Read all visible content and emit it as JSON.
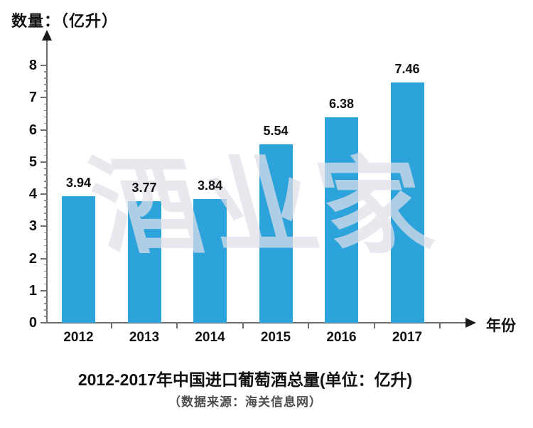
{
  "y_axis_label": "数量：（亿升）",
  "x_axis_label": "年份",
  "watermark": "酒业家",
  "title": "2012-2017年中国进口葡萄酒总量(单位：亿升)",
  "source": "（数据来源：海关信息网）",
  "colors": {
    "bar": "#2CA3DB",
    "axis": "#6e6e6e",
    "watermark": "rgba(223,223,232,0.72)",
    "title": "#111111",
    "source": "#4d4d4d"
  },
  "chart_data": {
    "type": "bar",
    "categories": [
      "2012",
      "2013",
      "2014",
      "2015",
      "2016",
      "2017"
    ],
    "values": [
      3.94,
      3.77,
      3.84,
      5.54,
      6.38,
      7.46
    ],
    "value_labels": [
      "3.94",
      "3.77",
      "3.84",
      "5.54",
      "6.38",
      "7.46"
    ],
    "title": "2012-2017年中国进口葡萄酒总量(单位：亿升)",
    "subtitle": "（数据来源：海关信息网）",
    "xlabel": "年份",
    "ylabel": "数量：（亿升）",
    "ylim": [
      0,
      8
    ],
    "y_tick_step": 1,
    "y_minor_tick_step": 0.2,
    "y_tick_labels": [
      "0",
      "1",
      "2",
      "3",
      "4",
      "5",
      "6",
      "7",
      "8"
    ],
    "grid": false,
    "legend": false,
    "bar_color": "#2CA3DB",
    "watermark_text": "酒业家"
  }
}
